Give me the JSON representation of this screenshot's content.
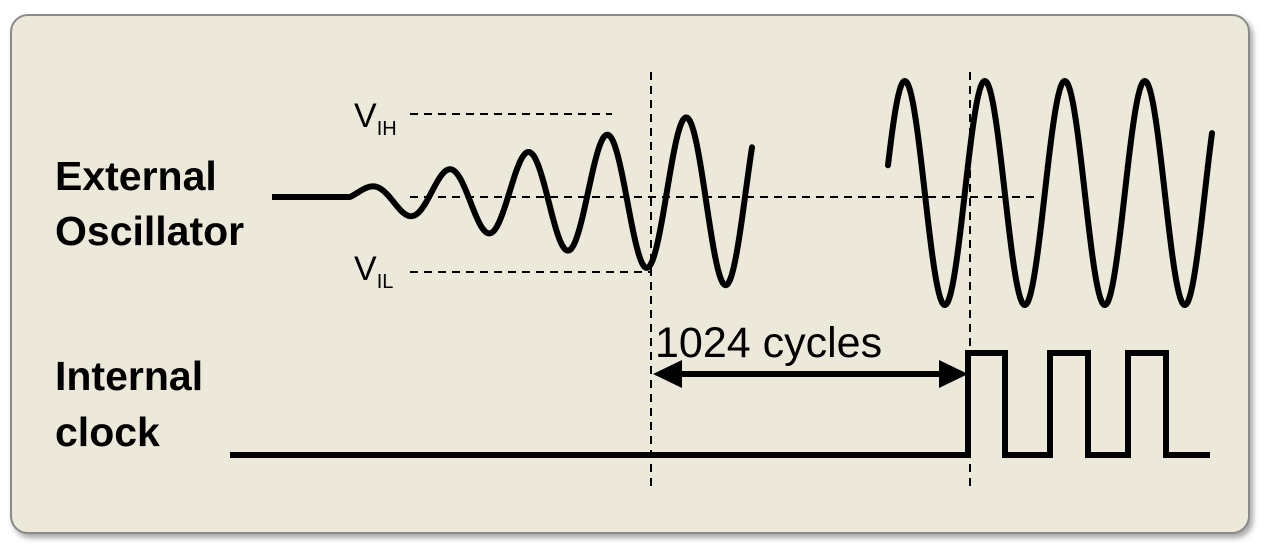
{
  "signals": {
    "external": {
      "line1": "External",
      "line2": "Oscillator"
    },
    "internal": {
      "line1": "Internal",
      "line2": "clock"
    }
  },
  "thresholds": {
    "high": {
      "main": "V",
      "sub": "IH"
    },
    "low": {
      "main": "V",
      "sub": "IL"
    }
  },
  "interval": {
    "label": "1024 cycles"
  },
  "colors": {
    "panel": "#ece9db",
    "ink": "#000000",
    "border": "#8a8a86"
  }
}
